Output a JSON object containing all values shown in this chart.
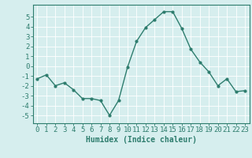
{
  "x": [
    0,
    1,
    2,
    3,
    4,
    5,
    6,
    7,
    8,
    9,
    10,
    11,
    12,
    13,
    14,
    15,
    16,
    17,
    18,
    19,
    20,
    21,
    22,
    23
  ],
  "y": [
    -1.3,
    -0.9,
    -2.0,
    -1.7,
    -2.4,
    -3.3,
    -3.3,
    -3.5,
    -5.0,
    -3.5,
    -0.1,
    2.5,
    3.9,
    4.7,
    5.5,
    5.5,
    3.8,
    1.7,
    0.4,
    -0.6,
    -2.0,
    -1.3,
    -2.6,
    -2.5
  ],
  "line_color": "#2e7d6e",
  "marker": "o",
  "marker_size": 2.0,
  "line_width": 1.0,
  "bg_color": "#d6eeee",
  "grid_color": "#ffffff",
  "xlabel": "Humidex (Indice chaleur)",
  "xlim": [
    -0.5,
    23.5
  ],
  "ylim": [
    -5.8,
    6.2
  ],
  "yticks": [
    -5,
    -4,
    -3,
    -2,
    -1,
    0,
    1,
    2,
    3,
    4,
    5
  ],
  "xticks": [
    0,
    1,
    2,
    3,
    4,
    5,
    6,
    7,
    8,
    9,
    10,
    11,
    12,
    13,
    14,
    15,
    16,
    17,
    18,
    19,
    20,
    21,
    22,
    23
  ],
  "tick_color": "#2e7d6e",
  "label_color": "#2e7d6e",
  "xlabel_fontsize": 7,
  "tick_fontsize": 6.5
}
